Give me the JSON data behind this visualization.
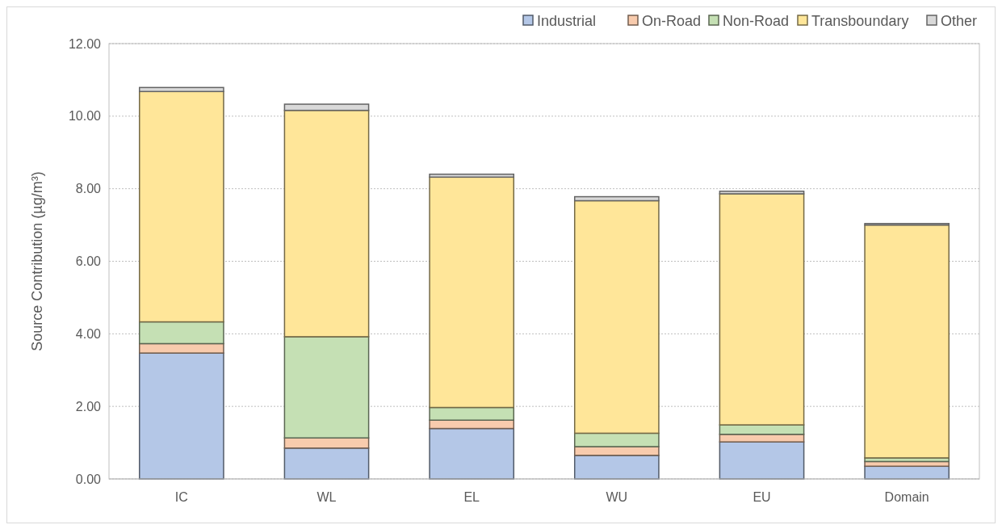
{
  "chart_data": {
    "type": "bar",
    "stacked": true,
    "ylabel": "Source Contribution (µg/m³)",
    "categories": [
      "IC",
      "WL",
      "EL",
      "WU",
      "EU",
      "Domain"
    ],
    "series": [
      {
        "name": "Industrial",
        "color": "#b4c7e7",
        "values": [
          3.47,
          0.85,
          1.39,
          0.65,
          1.02,
          0.35
        ]
      },
      {
        "name": "On-Road",
        "color": "#f8cbad",
        "values": [
          0.26,
          0.28,
          0.23,
          0.24,
          0.21,
          0.13
        ]
      },
      {
        "name": "Non-Road",
        "color": "#c5e0b4",
        "values": [
          0.6,
          2.79,
          0.35,
          0.37,
          0.26,
          0.1
        ]
      },
      {
        "name": "Transboundary",
        "color": "#ffe699",
        "values": [
          6.35,
          6.24,
          6.35,
          6.41,
          6.37,
          6.42
        ]
      },
      {
        "name": "Other",
        "color": "#d9d9d9",
        "values": [
          0.11,
          0.17,
          0.08,
          0.11,
          0.07,
          0.04
        ]
      }
    ],
    "ylim": [
      0,
      12
    ],
    "yticks": [
      {
        "value": 0,
        "label": "0.00"
      },
      {
        "value": 2,
        "label": "2.00"
      },
      {
        "value": 4,
        "label": "4.00"
      },
      {
        "value": 6,
        "label": "6.00"
      },
      {
        "value": 8,
        "label": "8.00"
      },
      {
        "value": 10,
        "label": "10.00"
      },
      {
        "value": 12,
        "label": "12.00"
      }
    ],
    "grid": "y",
    "legend": "top right"
  }
}
